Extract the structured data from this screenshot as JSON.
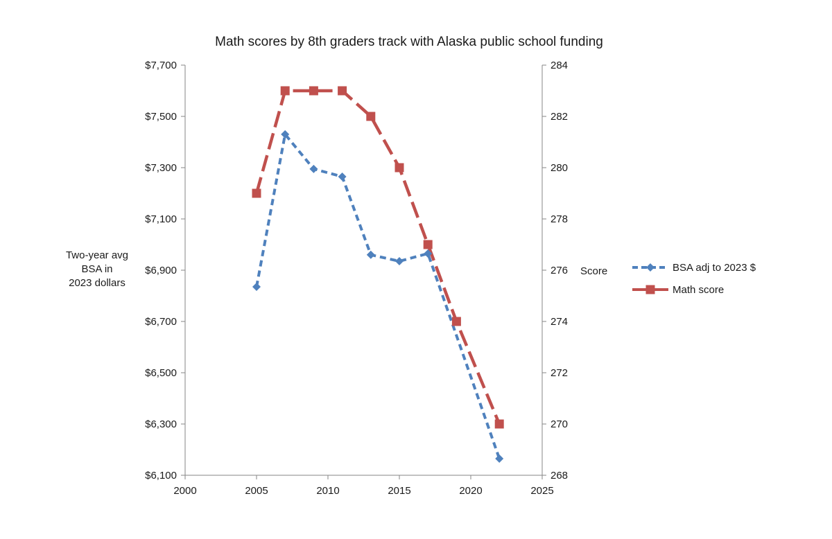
{
  "chart_data": {
    "type": "line",
    "title": "Math scores by 8th graders track with Alaska public school funding",
    "xlabel": "",
    "x_ticks": [
      2000,
      2005,
      2010,
      2015,
      2020,
      2025
    ],
    "xlim": [
      2000,
      2025
    ],
    "y_left": {
      "label_lines": [
        "Two-year avg",
        "BSA in",
        "2023 dollars"
      ],
      "ylim": [
        6100,
        7700
      ],
      "ticks": [
        6100,
        6300,
        6500,
        6700,
        6900,
        7100,
        7300,
        7500,
        7700
      ],
      "tick_labels": [
        "$6,100",
        "$6,300",
        "$6,500",
        "$6,700",
        "$6,900",
        "$7,100",
        "$7,300",
        "$7,500",
        "$7,700"
      ]
    },
    "y_right": {
      "label": "Score",
      "ylim": [
        268,
        284
      ],
      "ticks": [
        268,
        270,
        272,
        274,
        276,
        278,
        280,
        282,
        284
      ],
      "tick_labels": [
        "268",
        "270",
        "272",
        "274",
        "276",
        "278",
        "280",
        "282",
        "284"
      ]
    },
    "series": [
      {
        "name": "BSA adj to 2023 $",
        "axis": "left",
        "color": "#4f81bd",
        "marker": "diamond",
        "x": [
          2005,
          2007,
          2009,
          2011,
          2013,
          2015,
          2017,
          2022
        ],
        "y": [
          6835,
          7430,
          7295,
          7265,
          6960,
          6935,
          6965,
          6165
        ]
      },
      {
        "name": "Math score",
        "axis": "right",
        "color": "#c0504d",
        "marker": "square",
        "x": [
          2005,
          2007,
          2009,
          2011,
          2013,
          2015,
          2017,
          2019,
          2022
        ],
        "y": [
          279,
          283,
          283,
          283,
          282,
          280,
          277,
          274,
          270
        ]
      }
    ],
    "legend_position": "right"
  }
}
